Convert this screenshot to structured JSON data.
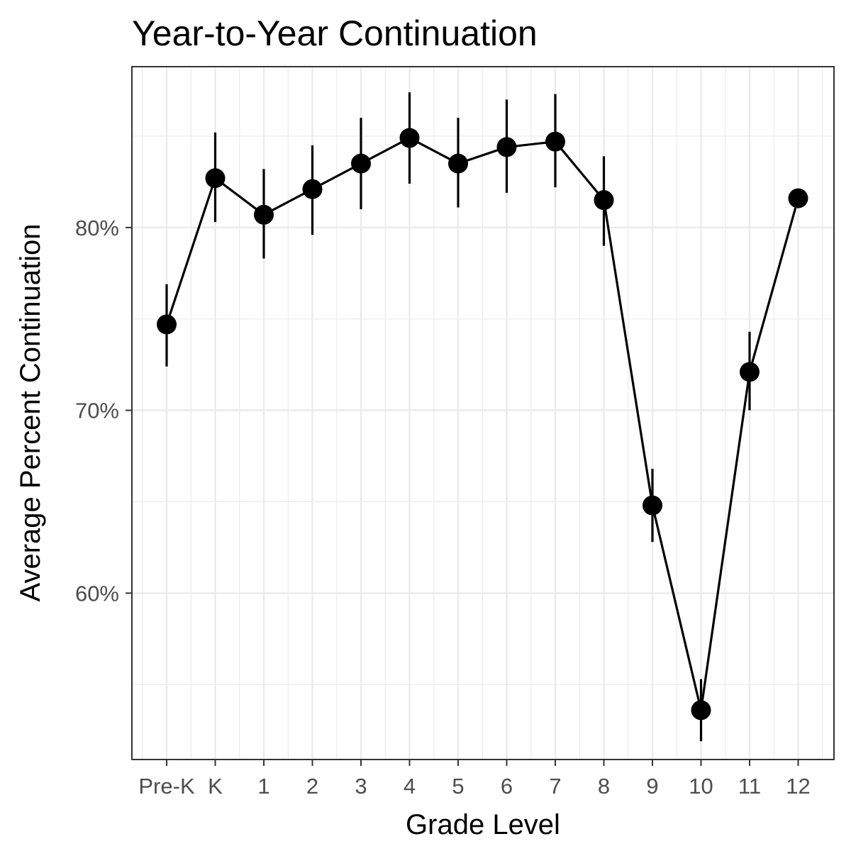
{
  "chart_data": {
    "type": "line",
    "title": "Year-to-Year Continuation",
    "xlabel": "Grade Level",
    "ylabel": "Average Percent Continuation",
    "categories": [
      "Pre-K",
      "K",
      "1",
      "2",
      "3",
      "4",
      "5",
      "6",
      "7",
      "8",
      "9",
      "10",
      "11",
      "12"
    ],
    "series": [
      {
        "values": [
          74.7,
          82.7,
          80.7,
          82.1,
          83.5,
          84.9,
          83.5,
          84.4,
          84.7,
          81.5,
          64.8,
          53.6,
          72.1,
          81.6
        ],
        "lower": [
          72.4,
          80.3,
          78.3,
          79.6,
          81.0,
          82.4,
          81.1,
          81.9,
          82.2,
          79.0,
          62.8,
          51.9,
          70.0,
          null
        ],
        "upper": [
          76.9,
          85.2,
          83.2,
          84.5,
          86.0,
          87.4,
          86.0,
          87.0,
          87.3,
          83.9,
          66.8,
          55.3,
          74.3,
          null
        ]
      }
    ],
    "ylim": [
      50.9,
      88.8
    ],
    "yticks": [
      60,
      70,
      80
    ],
    "ytick_labels": [
      "60%",
      "70%",
      "80%"
    ],
    "grid": true,
    "legend": "none",
    "colors": {
      "line": "#000000",
      "grid": "#ebebeb",
      "panel_border": "#333333",
      "tick_text": "#4d4d4d"
    }
  }
}
